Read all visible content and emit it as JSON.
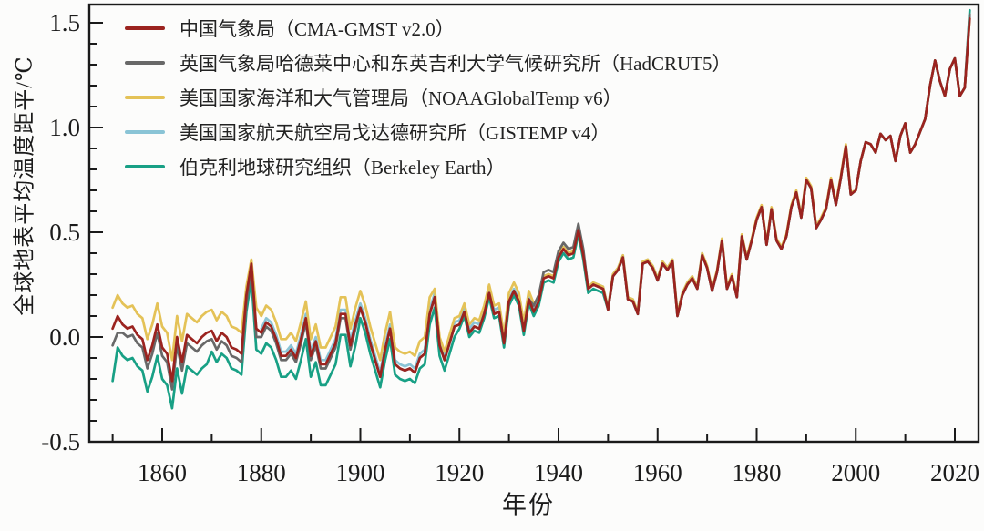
{
  "chart_data": {
    "type": "line",
    "title": "",
    "xlabel": "年份",
    "ylabel": "全球地表平均温度距平/℃",
    "grid": false,
    "legend_position": "top-left",
    "x_axis": {
      "major_ticks": [
        1860,
        1880,
        1900,
        1920,
        1940,
        1960,
        1980,
        2000,
        2020
      ],
      "minor_tick_start": 1850,
      "minor_tick_end": 2020,
      "minor_step": 10
    },
    "y_axis": {
      "major_ticks": [
        -0.5,
        0.0,
        0.5,
        1.0,
        1.5
      ],
      "major_tick_labels": [
        "-0.5",
        "0.0",
        "0.5",
        "1.0",
        "1.5"
      ],
      "minor_tick_start": -0.5,
      "minor_tick_end": 1.5,
      "minor_step": 0.1
    },
    "xlim": [
      1846,
      2025
    ],
    "ylim": [
      -0.5,
      1.59
    ],
    "series": [
      {
        "id": "cma",
        "name": "中国气象局（CMA-GMST v2.0）",
        "color": "#9B231F",
        "start_year": 1850,
        "values": [
          0.04,
          0.1,
          0.06,
          0.04,
          0.05,
          0.01,
          -0.01,
          -0.11,
          -0.04,
          0.06,
          -0.05,
          -0.08,
          -0.21,
          0.0,
          -0.12,
          0.01,
          -0.01,
          -0.03,
          0.0,
          0.02,
          0.03,
          -0.02,
          0.02,
          0.0,
          -0.05,
          -0.06,
          -0.08,
          0.2,
          0.35,
          0.04,
          0.02,
          0.07,
          0.05,
          -0.01,
          -0.09,
          -0.09,
          -0.06,
          -0.1,
          -0.01,
          0.09,
          -0.09,
          -0.02,
          -0.13,
          -0.13,
          -0.08,
          -0.03,
          0.11,
          0.11,
          -0.04,
          0.06,
          0.14,
          0.07,
          -0.03,
          -0.11,
          -0.19,
          -0.06,
          0.04,
          -0.13,
          -0.15,
          -0.16,
          -0.15,
          -0.17,
          -0.1,
          -0.08,
          0.11,
          0.19,
          -0.04,
          -0.11,
          -0.03,
          0.05,
          0.06,
          0.12,
          0.02,
          0.05,
          0.04,
          0.11,
          0.21,
          0.11,
          0.12,
          -0.03,
          0.17,
          0.22,
          0.17,
          0.03,
          0.18,
          0.12,
          0.17,
          0.28,
          0.29,
          0.28,
          0.38,
          0.42,
          0.39,
          0.4,
          0.51,
          0.39,
          0.23,
          0.25,
          0.24,
          0.23,
          0.13,
          0.29,
          0.32,
          0.38,
          0.18,
          0.17,
          0.11,
          0.35,
          0.36,
          0.33,
          0.27,
          0.35,
          0.32,
          0.36,
          0.1,
          0.2,
          0.25,
          0.28,
          0.23,
          0.39,
          0.33,
          0.22,
          0.31,
          0.46,
          0.23,
          0.29,
          0.19,
          0.48,
          0.37,
          0.46,
          0.56,
          0.62,
          0.44,
          0.61,
          0.46,
          0.42,
          0.48,
          0.62,
          0.69,
          0.57,
          0.75,
          0.71,
          0.52,
          0.56,
          0.61,
          0.75,
          0.63,
          0.76,
          0.91,
          0.68,
          0.7,
          0.84,
          0.93,
          0.92,
          0.88,
          0.97,
          0.94,
          0.96,
          0.84,
          0.96,
          1.02,
          0.88,
          0.92,
          0.98,
          1.04,
          1.2,
          1.32,
          1.22,
          1.15,
          1.28,
          1.33,
          1.15,
          1.19,
          1.52
        ]
      },
      {
        "id": "hadcrut5",
        "name": "英国气象局哈德莱中心和东英吉利大学气候研究所（HadCRUT5）",
        "color": "#686868",
        "start_year": 1850,
        "values": [
          -0.04,
          0.02,
          0.02,
          0.0,
          0.01,
          -0.03,
          -0.05,
          -0.15,
          -0.08,
          0.02,
          -0.09,
          -0.12,
          -0.25,
          -0.04,
          -0.16,
          -0.03,
          -0.05,
          -0.07,
          -0.04,
          -0.02,
          -0.01,
          -0.06,
          -0.02,
          -0.04,
          -0.09,
          -0.1,
          -0.12,
          0.16,
          0.33,
          0.0,
          0.0,
          0.05,
          0.03,
          -0.03,
          -0.11,
          -0.11,
          -0.08,
          -0.12,
          -0.03,
          0.07,
          -0.11,
          -0.04,
          -0.15,
          -0.15,
          -0.1,
          -0.05,
          0.09,
          0.09,
          -0.06,
          0.04,
          0.14,
          0.07,
          -0.03,
          -0.11,
          -0.19,
          -0.06,
          0.04,
          -0.13,
          -0.15,
          -0.16,
          -0.15,
          -0.17,
          -0.1,
          -0.08,
          0.11,
          0.19,
          -0.04,
          -0.11,
          -0.03,
          0.05,
          0.06,
          0.12,
          0.02,
          0.05,
          0.04,
          0.11,
          0.21,
          0.11,
          0.12,
          -0.03,
          0.17,
          0.22,
          0.17,
          0.03,
          0.18,
          0.15,
          0.2,
          0.31,
          0.32,
          0.31,
          0.41,
          0.45,
          0.42,
          0.43,
          0.54,
          0.42,
          0.23,
          0.25,
          0.24,
          0.23,
          0.13,
          0.29,
          0.32,
          0.38,
          0.18,
          0.17,
          0.11,
          0.35,
          0.36,
          0.33,
          0.27,
          0.35,
          0.32,
          0.36,
          0.1,
          0.2,
          0.25,
          0.28,
          0.23,
          0.39,
          0.33,
          0.22,
          0.31,
          0.46,
          0.23,
          0.29,
          0.19,
          0.48,
          0.37,
          0.46,
          0.56,
          0.62,
          0.44,
          0.61,
          0.46,
          0.42,
          0.48,
          0.62,
          0.69,
          0.57,
          0.75,
          0.71,
          0.52,
          0.56,
          0.61,
          0.75,
          0.63,
          0.76,
          0.91,
          0.68,
          0.7,
          0.84,
          0.93,
          0.92,
          0.88,
          0.97,
          0.94,
          0.96,
          0.84,
          0.96,
          1.02,
          0.88,
          0.92,
          0.98,
          1.04,
          1.2,
          1.32,
          1.22,
          1.15,
          1.28,
          1.33,
          1.15,
          1.19,
          1.54
        ]
      },
      {
        "id": "noaa",
        "name": "美国国家海洋和大气管理局（NOAAGlobalTemp v6）",
        "color": "#E4C257",
        "start_year": 1850,
        "values": [
          0.14,
          0.2,
          0.16,
          0.14,
          0.15,
          0.11,
          0.09,
          -0.01,
          0.06,
          0.16,
          0.05,
          0.02,
          -0.11,
          0.1,
          -0.02,
          0.11,
          0.09,
          0.07,
          0.1,
          0.12,
          0.13,
          0.08,
          0.12,
          0.1,
          0.05,
          0.04,
          0.02,
          0.24,
          0.37,
          0.14,
          0.1,
          0.15,
          0.13,
          0.07,
          -0.01,
          -0.01,
          0.02,
          -0.02,
          0.07,
          0.17,
          -0.01,
          0.06,
          -0.05,
          -0.05,
          0.0,
          0.05,
          0.19,
          0.19,
          0.04,
          0.14,
          0.22,
          0.15,
          0.05,
          -0.03,
          -0.11,
          0.02,
          0.12,
          -0.05,
          -0.07,
          -0.08,
          -0.07,
          -0.09,
          -0.02,
          0.0,
          0.19,
          0.23,
          0.0,
          -0.07,
          0.01,
          0.09,
          0.1,
          0.16,
          0.06,
          0.09,
          0.08,
          0.15,
          0.25,
          0.15,
          0.16,
          0.01,
          0.21,
          0.26,
          0.21,
          0.07,
          0.22,
          0.16,
          0.18,
          0.29,
          0.3,
          0.29,
          0.39,
          0.43,
          0.4,
          0.41,
          0.52,
          0.4,
          0.24,
          0.26,
          0.25,
          0.24,
          0.14,
          0.3,
          0.33,
          0.39,
          0.19,
          0.18,
          0.12,
          0.36,
          0.37,
          0.34,
          0.28,
          0.36,
          0.33,
          0.37,
          0.11,
          0.21,
          0.26,
          0.29,
          0.24,
          0.4,
          0.34,
          0.23,
          0.32,
          0.47,
          0.24,
          0.3,
          0.2,
          0.49,
          0.38,
          0.47,
          0.57,
          0.63,
          0.45,
          0.62,
          0.47,
          0.43,
          0.49,
          0.63,
          0.7,
          0.58,
          0.76,
          0.72,
          0.53,
          0.57,
          0.62,
          0.76,
          0.64,
          0.77,
          0.92,
          0.69,
          0.7,
          0.84,
          0.93,
          0.92,
          0.88,
          0.97,
          0.94,
          0.96,
          0.84,
          0.96,
          1.02,
          0.88,
          0.92,
          0.98,
          1.04,
          1.2,
          1.32,
          1.22,
          1.15,
          1.28,
          1.33,
          1.15,
          1.19,
          1.52
        ]
      },
      {
        "id": "gistemp",
        "name": "美国国家航天航空局戈达德研究所（GISTEMP v4）",
        "color": "#8AC4D6",
        "start_year": 1880,
        "values": [
          0.04,
          0.09,
          0.07,
          0.01,
          -0.07,
          -0.07,
          -0.04,
          -0.08,
          0.01,
          0.11,
          -0.07,
          0.0,
          -0.11,
          -0.11,
          -0.06,
          -0.01,
          0.13,
          0.13,
          -0.02,
          0.08,
          0.16,
          0.09,
          -0.01,
          -0.09,
          -0.17,
          -0.04,
          0.06,
          -0.11,
          -0.13,
          -0.14,
          -0.13,
          -0.15,
          -0.08,
          -0.06,
          0.13,
          0.21,
          -0.02,
          -0.09,
          -0.01,
          0.07,
          0.08,
          0.14,
          0.04,
          0.07,
          0.06,
          0.13,
          0.23,
          0.13,
          0.14,
          -0.01,
          0.18,
          0.23,
          0.18,
          0.04,
          0.19,
          0.13,
          0.18,
          0.29,
          0.3,
          0.29,
          0.39,
          0.43,
          0.4,
          0.41,
          0.52,
          0.4,
          0.24,
          0.26,
          0.25,
          0.24,
          0.14,
          0.3,
          0.33,
          0.39,
          0.19,
          0.18,
          0.12,
          0.36,
          0.37,
          0.34,
          0.28,
          0.36,
          0.33,
          0.37,
          0.11,
          0.21,
          0.26,
          0.29,
          0.24,
          0.4,
          0.33,
          0.22,
          0.31,
          0.46,
          0.23,
          0.29,
          0.19,
          0.48,
          0.37,
          0.46,
          0.56,
          0.62,
          0.44,
          0.61,
          0.46,
          0.42,
          0.48,
          0.62,
          0.69,
          0.57,
          0.75,
          0.71,
          0.52,
          0.56,
          0.61,
          0.75,
          0.63,
          0.76,
          0.91,
          0.68,
          0.7,
          0.84,
          0.93,
          0.92,
          0.88,
          0.97,
          0.94,
          0.96,
          0.84,
          0.96,
          1.02,
          0.88,
          0.92,
          0.98,
          1.04,
          1.2,
          1.32,
          1.22,
          1.15,
          1.28,
          1.33,
          1.15,
          1.19,
          1.53
        ]
      },
      {
        "id": "berkeley",
        "name": "伯克利地球研究组织（Berkeley Earth）",
        "color": "#18A085",
        "start_year": 1850,
        "values": [
          -0.21,
          -0.05,
          -0.09,
          -0.11,
          -0.1,
          -0.14,
          -0.16,
          -0.26,
          -0.19,
          -0.09,
          -0.2,
          -0.23,
          -0.34,
          -0.15,
          -0.27,
          -0.14,
          -0.16,
          -0.18,
          -0.15,
          -0.13,
          -0.07,
          -0.12,
          -0.08,
          -0.1,
          -0.15,
          -0.16,
          -0.18,
          0.12,
          0.28,
          -0.06,
          -0.08,
          -0.03,
          -0.05,
          -0.11,
          -0.19,
          -0.19,
          -0.16,
          -0.2,
          -0.11,
          -0.01,
          -0.19,
          -0.12,
          -0.23,
          -0.23,
          -0.18,
          -0.13,
          0.01,
          0.01,
          -0.14,
          -0.04,
          0.09,
          0.02,
          -0.08,
          -0.16,
          -0.24,
          -0.11,
          -0.01,
          -0.18,
          -0.2,
          -0.21,
          -0.2,
          -0.22,
          -0.15,
          -0.13,
          0.06,
          0.14,
          -0.09,
          -0.16,
          -0.08,
          0.0,
          0.04,
          0.1,
          0.0,
          0.03,
          0.02,
          0.09,
          0.19,
          0.09,
          0.1,
          -0.05,
          0.15,
          0.2,
          0.15,
          0.01,
          0.16,
          0.1,
          0.15,
          0.26,
          0.27,
          0.26,
          0.36,
          0.4,
          0.37,
          0.38,
          0.49,
          0.37,
          0.21,
          0.23,
          0.22,
          0.21,
          0.13,
          0.29,
          0.32,
          0.38,
          0.18,
          0.17,
          0.11,
          0.35,
          0.36,
          0.33,
          0.27,
          0.35,
          0.32,
          0.36,
          0.1,
          0.2,
          0.25,
          0.28,
          0.23,
          0.39,
          0.33,
          0.22,
          0.31,
          0.46,
          0.23,
          0.29,
          0.19,
          0.48,
          0.37,
          0.46,
          0.56,
          0.62,
          0.44,
          0.61,
          0.46,
          0.42,
          0.48,
          0.62,
          0.69,
          0.57,
          0.75,
          0.71,
          0.52,
          0.56,
          0.61,
          0.75,
          0.63,
          0.76,
          0.91,
          0.68,
          0.7,
          0.84,
          0.93,
          0.92,
          0.88,
          0.97,
          0.94,
          0.96,
          0.84,
          0.96,
          1.02,
          0.88,
          0.92,
          0.98,
          1.04,
          1.2,
          1.32,
          1.22,
          1.15,
          1.28,
          1.33,
          1.15,
          1.19,
          1.56
        ]
      }
    ],
    "colors": {
      "frame": "#1a1a1a",
      "text": "#1b1b1b",
      "background": "#fcfcfb"
    }
  }
}
